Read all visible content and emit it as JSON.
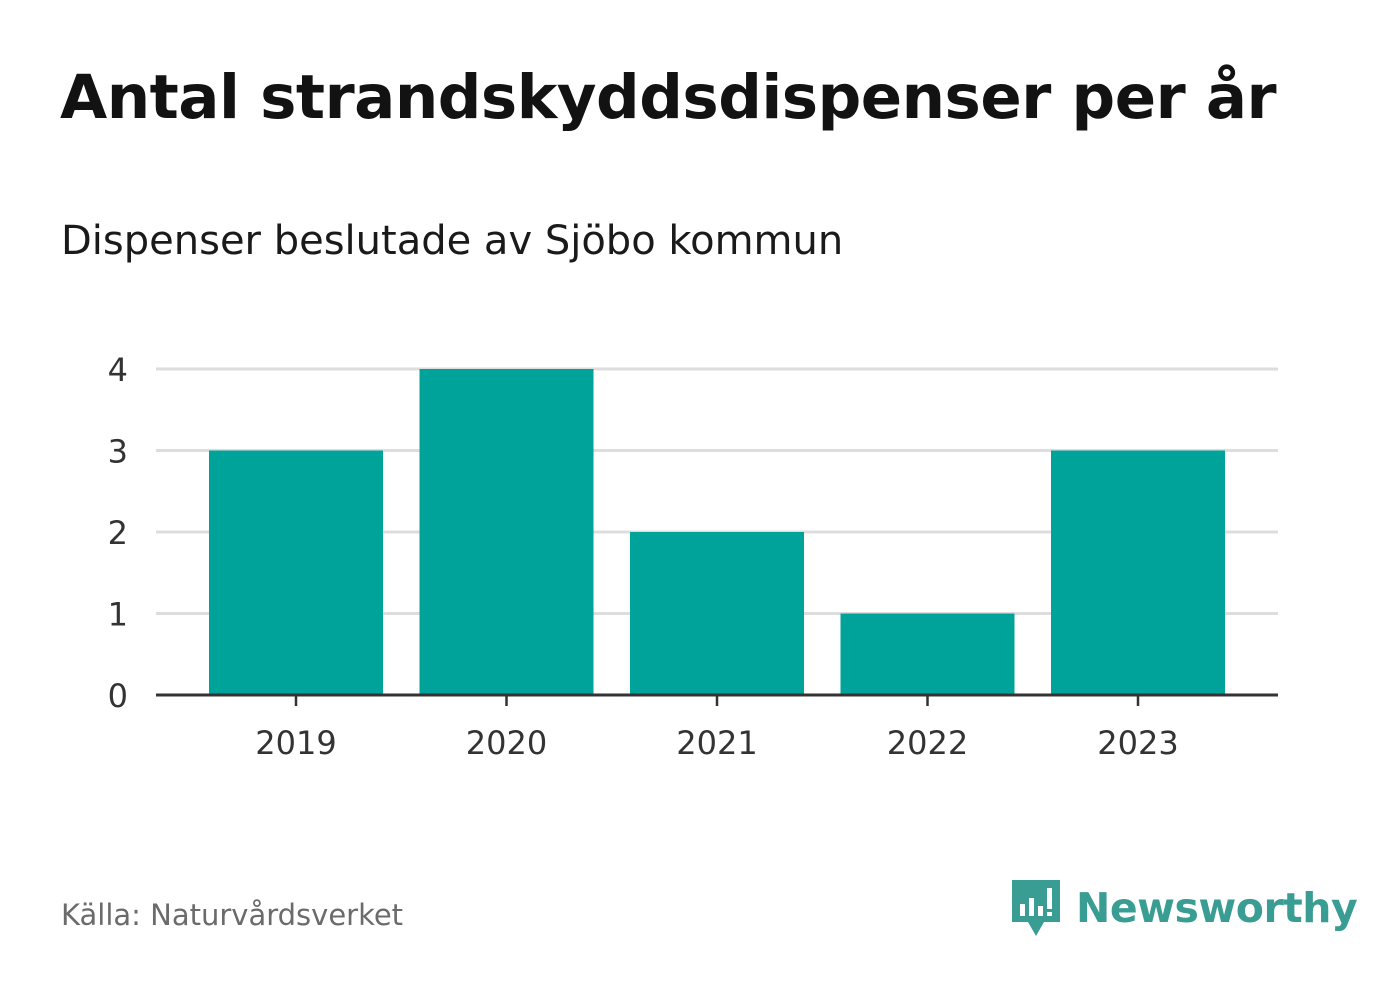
{
  "title": "Antal strandskyddsdispenser per år",
  "subtitle": "Dispenser beslutade av Sjöbo kommun",
  "source": "Källa: Naturvårdsverket",
  "brand": {
    "name": "Newsworthy",
    "icon": "newsworthy-logo-icon"
  },
  "colors": {
    "bar": "#00a39a",
    "grid": "#dddddd",
    "axis": "#333333",
    "brand": "#3a9d93"
  },
  "chart_data": {
    "type": "bar",
    "categories": [
      "2019",
      "2020",
      "2021",
      "2022",
      "2023"
    ],
    "values": [
      3,
      4,
      2,
      1,
      3
    ],
    "yticks": [
      "0",
      "1",
      "2",
      "3",
      "4"
    ],
    "ylim": [
      0,
      4
    ],
    "title": "Antal strandskyddsdispenser per år",
    "xlabel": "",
    "ylabel": "",
    "grid": true
  }
}
